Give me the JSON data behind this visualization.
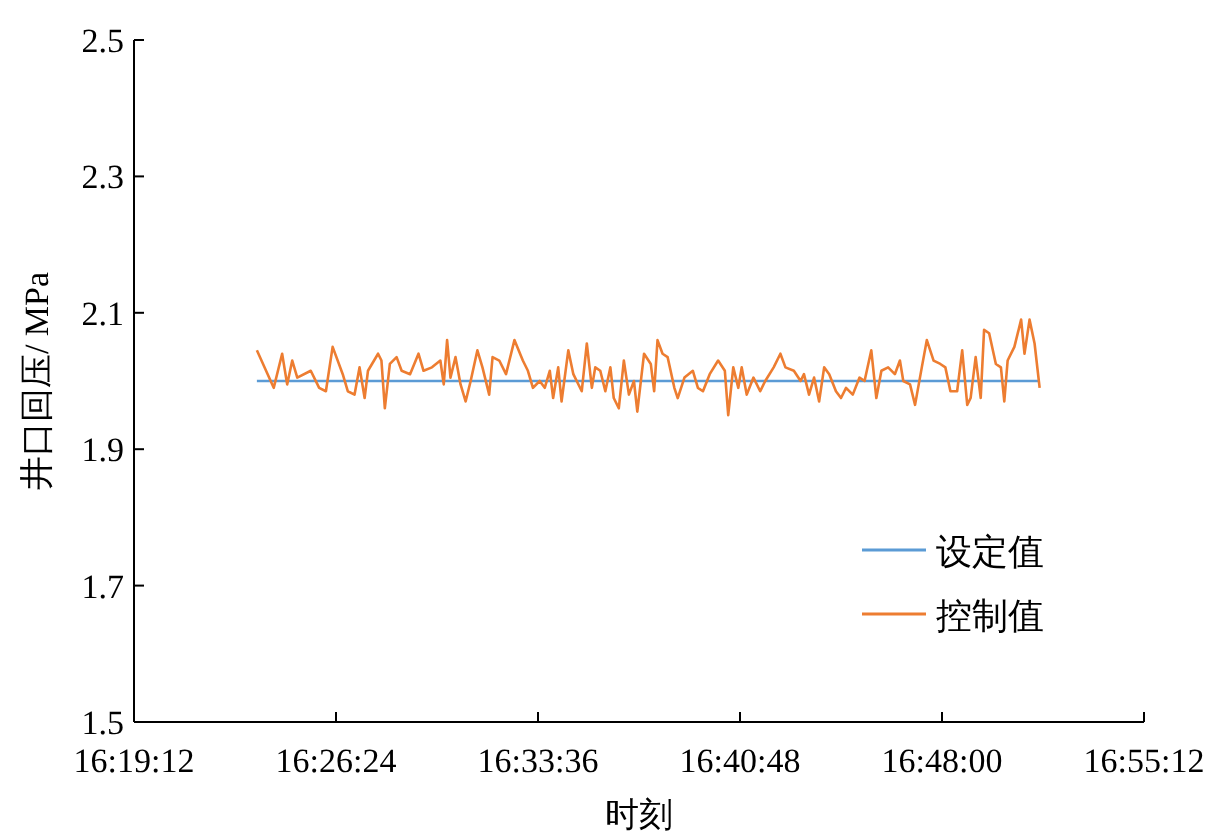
{
  "chart_data": {
    "type": "line",
    "xlabel": "时刻",
    "ylabel": "井口回压/ MPa",
    "xlim": [
      16.32,
      16.92
    ],
    "xticks": [
      {
        "value": 16.32,
        "label": "16:19:12"
      },
      {
        "value": 16.44,
        "label": "16:26:24"
      },
      {
        "value": 16.56,
        "label": "16:33:36"
      },
      {
        "value": 16.68,
        "label": "16:40:48"
      },
      {
        "value": 16.8,
        "label": "16:48:00"
      },
      {
        "value": 16.92,
        "label": "16:55:12"
      }
    ],
    "ylim": [
      1.5,
      2.5
    ],
    "yticks": [
      1.5,
      1.7,
      1.9,
      2.1,
      2.3,
      2.5
    ],
    "grid": false,
    "legend": "bottom right",
    "line_style": "solid",
    "marker": "none",
    "series": [
      {
        "name": "设定值",
        "color": "#5b9bd5",
        "x": [
          16.393,
          16.858
        ],
        "values": [
          2.0,
          2.0
        ]
      },
      {
        "name": "控制值",
        "color": "#ed7d31",
        "x": [
          16.393,
          16.403,
          16.408,
          16.411,
          16.414,
          16.417,
          16.425,
          16.43,
          16.434,
          16.438,
          16.444,
          16.447,
          16.451,
          16.454,
          16.457,
          16.459,
          16.465,
          16.467,
          16.469,
          16.472,
          16.476,
          16.479,
          16.484,
          16.489,
          16.492,
          16.497,
          16.502,
          16.504,
          16.506,
          16.508,
          16.511,
          16.514,
          16.517,
          16.52,
          16.524,
          16.527,
          16.531,
          16.533,
          16.537,
          16.541,
          16.546,
          16.551,
          16.554,
          16.557,
          16.561,
          16.564,
          16.567,
          16.569,
          16.572,
          16.574,
          16.578,
          16.581,
          16.586,
          16.589,
          16.592,
          16.594,
          16.597,
          16.6,
          16.603,
          16.605,
          16.608,
          16.611,
          16.614,
          16.617,
          16.619,
          16.623,
          16.627,
          16.629,
          16.631,
          16.634,
          16.637,
          16.641,
          16.643,
          16.647,
          16.652,
          16.655,
          16.658,
          16.662,
          16.667,
          16.671,
          16.673,
          16.676,
          16.679,
          16.681,
          16.684,
          16.688,
          16.692,
          16.695,
          16.7,
          16.704,
          16.707,
          16.712,
          16.716,
          16.718,
          16.721,
          16.724,
          16.727,
          16.73,
          16.733,
          16.737,
          16.74,
          16.743,
          16.747,
          16.751,
          16.754,
          16.758,
          16.761,
          16.764,
          16.768,
          16.772,
          16.775,
          16.777,
          16.781,
          16.784,
          16.788,
          16.791,
          16.795,
          16.799,
          16.802,
          16.805,
          16.809,
          16.812,
          16.815,
          16.817,
          16.82,
          16.823,
          16.825,
          16.828,
          16.832,
          16.835,
          16.837,
          16.839,
          16.843,
          16.847,
          16.849,
          16.852,
          16.855,
          16.858
        ],
        "values": [
          2.045,
          1.99,
          2.04,
          1.995,
          2.03,
          2.005,
          2.015,
          1.99,
          1.985,
          2.05,
          2.01,
          1.985,
          1.98,
          2.02,
          1.975,
          2.015,
          2.04,
          2.03,
          1.96,
          2.025,
          2.035,
          2.015,
          2.01,
          2.04,
          2.015,
          2.02,
          2.03,
          1.995,
          2.06,
          2.005,
          2.035,
          1.995,
          1.97,
          2.0,
          2.045,
          2.02,
          1.98,
          2.035,
          2.03,
          2.01,
          2.06,
          2.03,
          2.015,
          1.99,
          2.0,
          1.99,
          2.015,
          1.975,
          2.02,
          1.97,
          2.045,
          2.01,
          1.985,
          2.055,
          1.99,
          2.02,
          2.015,
          1.985,
          2.02,
          1.975,
          1.96,
          2.03,
          1.98,
          2.0,
          1.955,
          2.04,
          2.025,
          1.985,
          2.06,
          2.04,
          2.035,
          1.99,
          1.975,
          2.005,
          2.015,
          1.99,
          1.985,
          2.01,
          2.03,
          2.015,
          1.95,
          2.02,
          1.99,
          2.02,
          1.98,
          2.005,
          1.985,
          2.0,
          2.02,
          2.04,
          2.02,
          2.015,
          2.0,
          2.01,
          1.98,
          2.005,
          1.97,
          2.02,
          2.01,
          1.985,
          1.975,
          1.99,
          1.98,
          2.005,
          2.0,
          2.045,
          1.975,
          2.015,
          2.02,
          2.01,
          2.03,
          2.0,
          1.995,
          1.965,
          2.02,
          2.06,
          2.03,
          2.025,
          2.02,
          1.985,
          1.985,
          2.045,
          1.965,
          1.975,
          2.035,
          1.975,
          2.075,
          2.07,
          2.025,
          2.02,
          1.97,
          2.03,
          2.05,
          2.09,
          2.04,
          2.09,
          2.055,
          1.99
        ]
      }
    ]
  }
}
